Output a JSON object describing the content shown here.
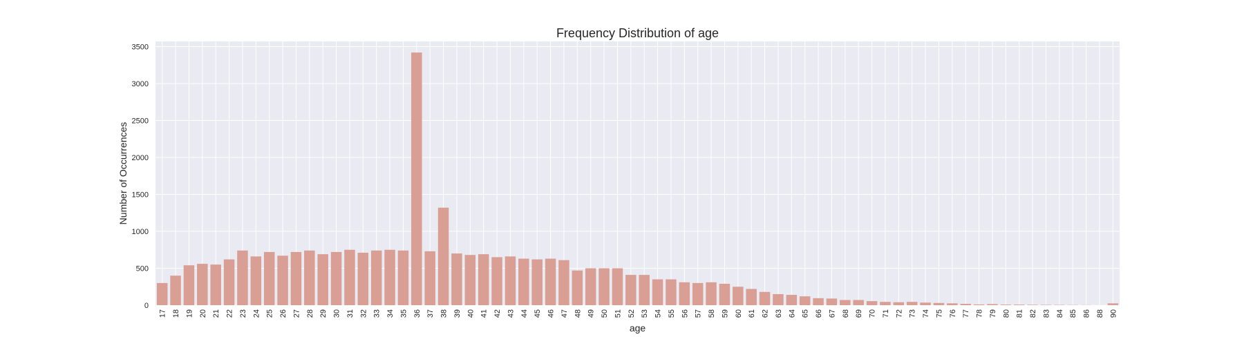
{
  "chart_data": {
    "type": "bar",
    "title": "Frequency Distribution of age",
    "xlabel": "age",
    "ylabel": "Number of Occurrences",
    "ylim": [
      0,
      3570
    ],
    "yticks": [
      0,
      500,
      1000,
      1500,
      2000,
      2500,
      3000,
      3500
    ],
    "ytick_labels": [
      "0",
      "500",
      "1000",
      "1500",
      "2000",
      "2500",
      "3000",
      "3500"
    ],
    "grid": true,
    "bar_color": "#d99e94",
    "background_color": "#eaeaf2",
    "grid_color": "#ffffff",
    "categories": [
      "17",
      "18",
      "19",
      "20",
      "21",
      "22",
      "23",
      "24",
      "25",
      "26",
      "27",
      "28",
      "29",
      "30",
      "31",
      "32",
      "33",
      "34",
      "35",
      "36",
      "37",
      "38",
      "39",
      "40",
      "41",
      "42",
      "43",
      "44",
      "45",
      "46",
      "47",
      "48",
      "49",
      "50",
      "51",
      "52",
      "53",
      "54",
      "55",
      "56",
      "57",
      "58",
      "59",
      "60",
      "61",
      "62",
      "63",
      "64",
      "65",
      "66",
      "67",
      "68",
      "69",
      "70",
      "71",
      "72",
      "73",
      "74",
      "75",
      "76",
      "77",
      "78",
      "79",
      "80",
      "81",
      "82",
      "83",
      "84",
      "85",
      "86",
      "88",
      "90"
    ],
    "values": [
      300,
      400,
      540,
      560,
      550,
      620,
      740,
      660,
      720,
      670,
      720,
      740,
      690,
      720,
      750,
      710,
      740,
      750,
      740,
      3420,
      730,
      1320,
      700,
      680,
      690,
      650,
      660,
      630,
      620,
      630,
      610,
      470,
      500,
      500,
      500,
      410,
      410,
      350,
      350,
      310,
      300,
      310,
      290,
      250,
      220,
      180,
      150,
      140,
      120,
      95,
      90,
      70,
      70,
      55,
      45,
      40,
      45,
      35,
      30,
      25,
      18,
      10,
      15,
      8,
      8,
      6,
      5,
      4,
      3,
      2,
      1,
      25
    ]
  }
}
